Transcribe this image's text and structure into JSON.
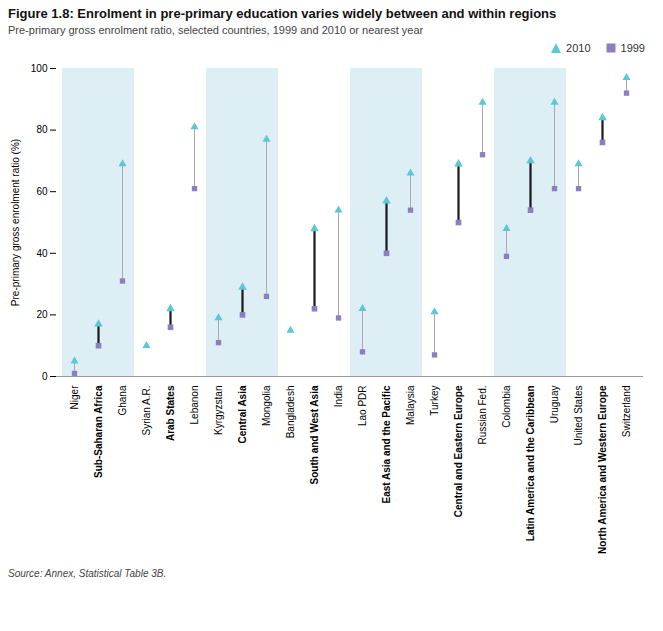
{
  "chart_data": {
    "type": "dumbbell",
    "title": "Figure 1.8: Enrolment in pre-primary education varies widely between and within regions",
    "subtitle": "Pre-primary gross enrolment ratio, selected countries, 1999 and 2010 or nearest year",
    "source": "Source: Annex, Statistical Table 3B.",
    "ylabel": "Pre-primary gross enrolment ratio (%)",
    "categories": [
      "Niger",
      "Sub-Saharan Africa",
      "Ghana",
      "Syrian A.R.",
      "Arab States",
      "Lebanon",
      "Kyrgyzstan",
      "Central Asia",
      "Mongolia",
      "Bangladesh",
      "South and West Asia",
      "India",
      "Lao PDR",
      "East Asia and the Pacific",
      "Malaysia",
      "Turkey",
      "Central and Eastern Europe",
      "Russian Fed.",
      "Colombia",
      "Latin America and the Caribbean",
      "Uruguay",
      "United States",
      "North America and Western Europe",
      "Switzerland"
    ],
    "series": [
      {
        "name": "2010",
        "color": "#5bc8d5",
        "marker": "triangle",
        "values": [
          5,
          17,
          69,
          10,
          22,
          81,
          19,
          29,
          77,
          15,
          48,
          54,
          22,
          57,
          66,
          21,
          69,
          89,
          48,
          70,
          89,
          69,
          84,
          97
        ]
      },
      {
        "name": "1999",
        "color": "#8b7fbf",
        "marker": "square",
        "values": [
          1,
          10,
          31,
          null,
          16,
          61,
          11,
          20,
          26,
          null,
          22,
          19,
          8,
          40,
          54,
          7,
          50,
          72,
          39,
          54,
          61,
          61,
          76,
          92
        ]
      }
    ],
    "ylim": [
      0,
      100
    ],
    "yticks": [
      0,
      20,
      40,
      60,
      80,
      100
    ],
    "legend": "upper right",
    "grid": false
  }
}
